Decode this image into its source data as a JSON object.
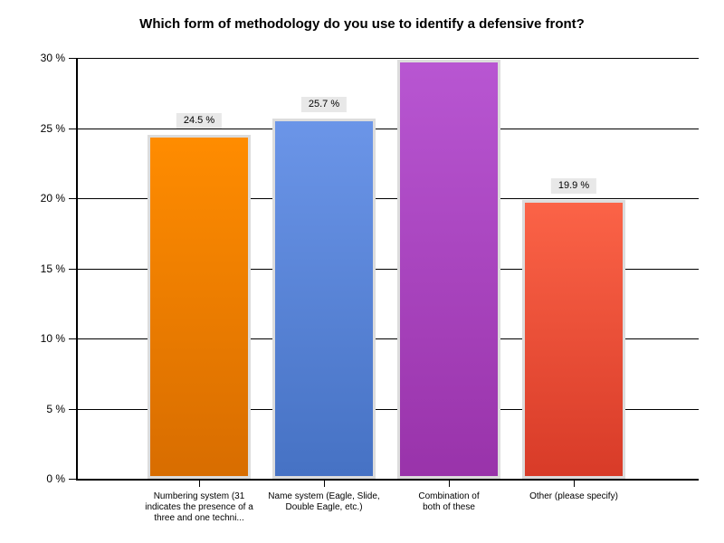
{
  "title": "Which form of methodology do you use to identify a defensive front?",
  "chart_data": {
    "type": "bar",
    "title": "Which form of methodology do you use to identify a defensive front?",
    "categories": [
      "Numbering system (31\nindicates the presence of a\nthree and one techni...",
      "Name system (Eagle, Slide,\nDouble Eagle, etc.)",
      "Combination of\nboth of these",
      "Other (please specify)"
    ],
    "values": [
      24.5,
      25.7,
      29.9,
      19.9
    ],
    "value_labels": [
      "24.5 %",
      "25.7 %",
      "",
      "19.9 %"
    ],
    "ylim": [
      0,
      30
    ],
    "ytick_step": 5,
    "ytick_labels": [
      "0 %",
      "5 %",
      "10 %",
      "15 %",
      "20 %",
      "25 %",
      "30 %"
    ],
    "grid": true,
    "legend": "none",
    "xlabel": "",
    "ylabel": "",
    "bar_colors": [
      {
        "name": "orange",
        "top": "#FF8C00",
        "bottom": "#D86D00"
      },
      {
        "name": "blue",
        "top": "#6B95E8",
        "bottom": "#4672C4"
      },
      {
        "name": "purple",
        "top": "#B856D2",
        "bottom": "#9933AA"
      },
      {
        "name": "red",
        "top": "#FB6347",
        "bottom": "#D83B28"
      }
    ],
    "bar_border_color": "#DCDCDC",
    "value_label_bg": "#E8E8E8",
    "axis_color": "#000000",
    "background_color": "#FFFFFF"
  }
}
